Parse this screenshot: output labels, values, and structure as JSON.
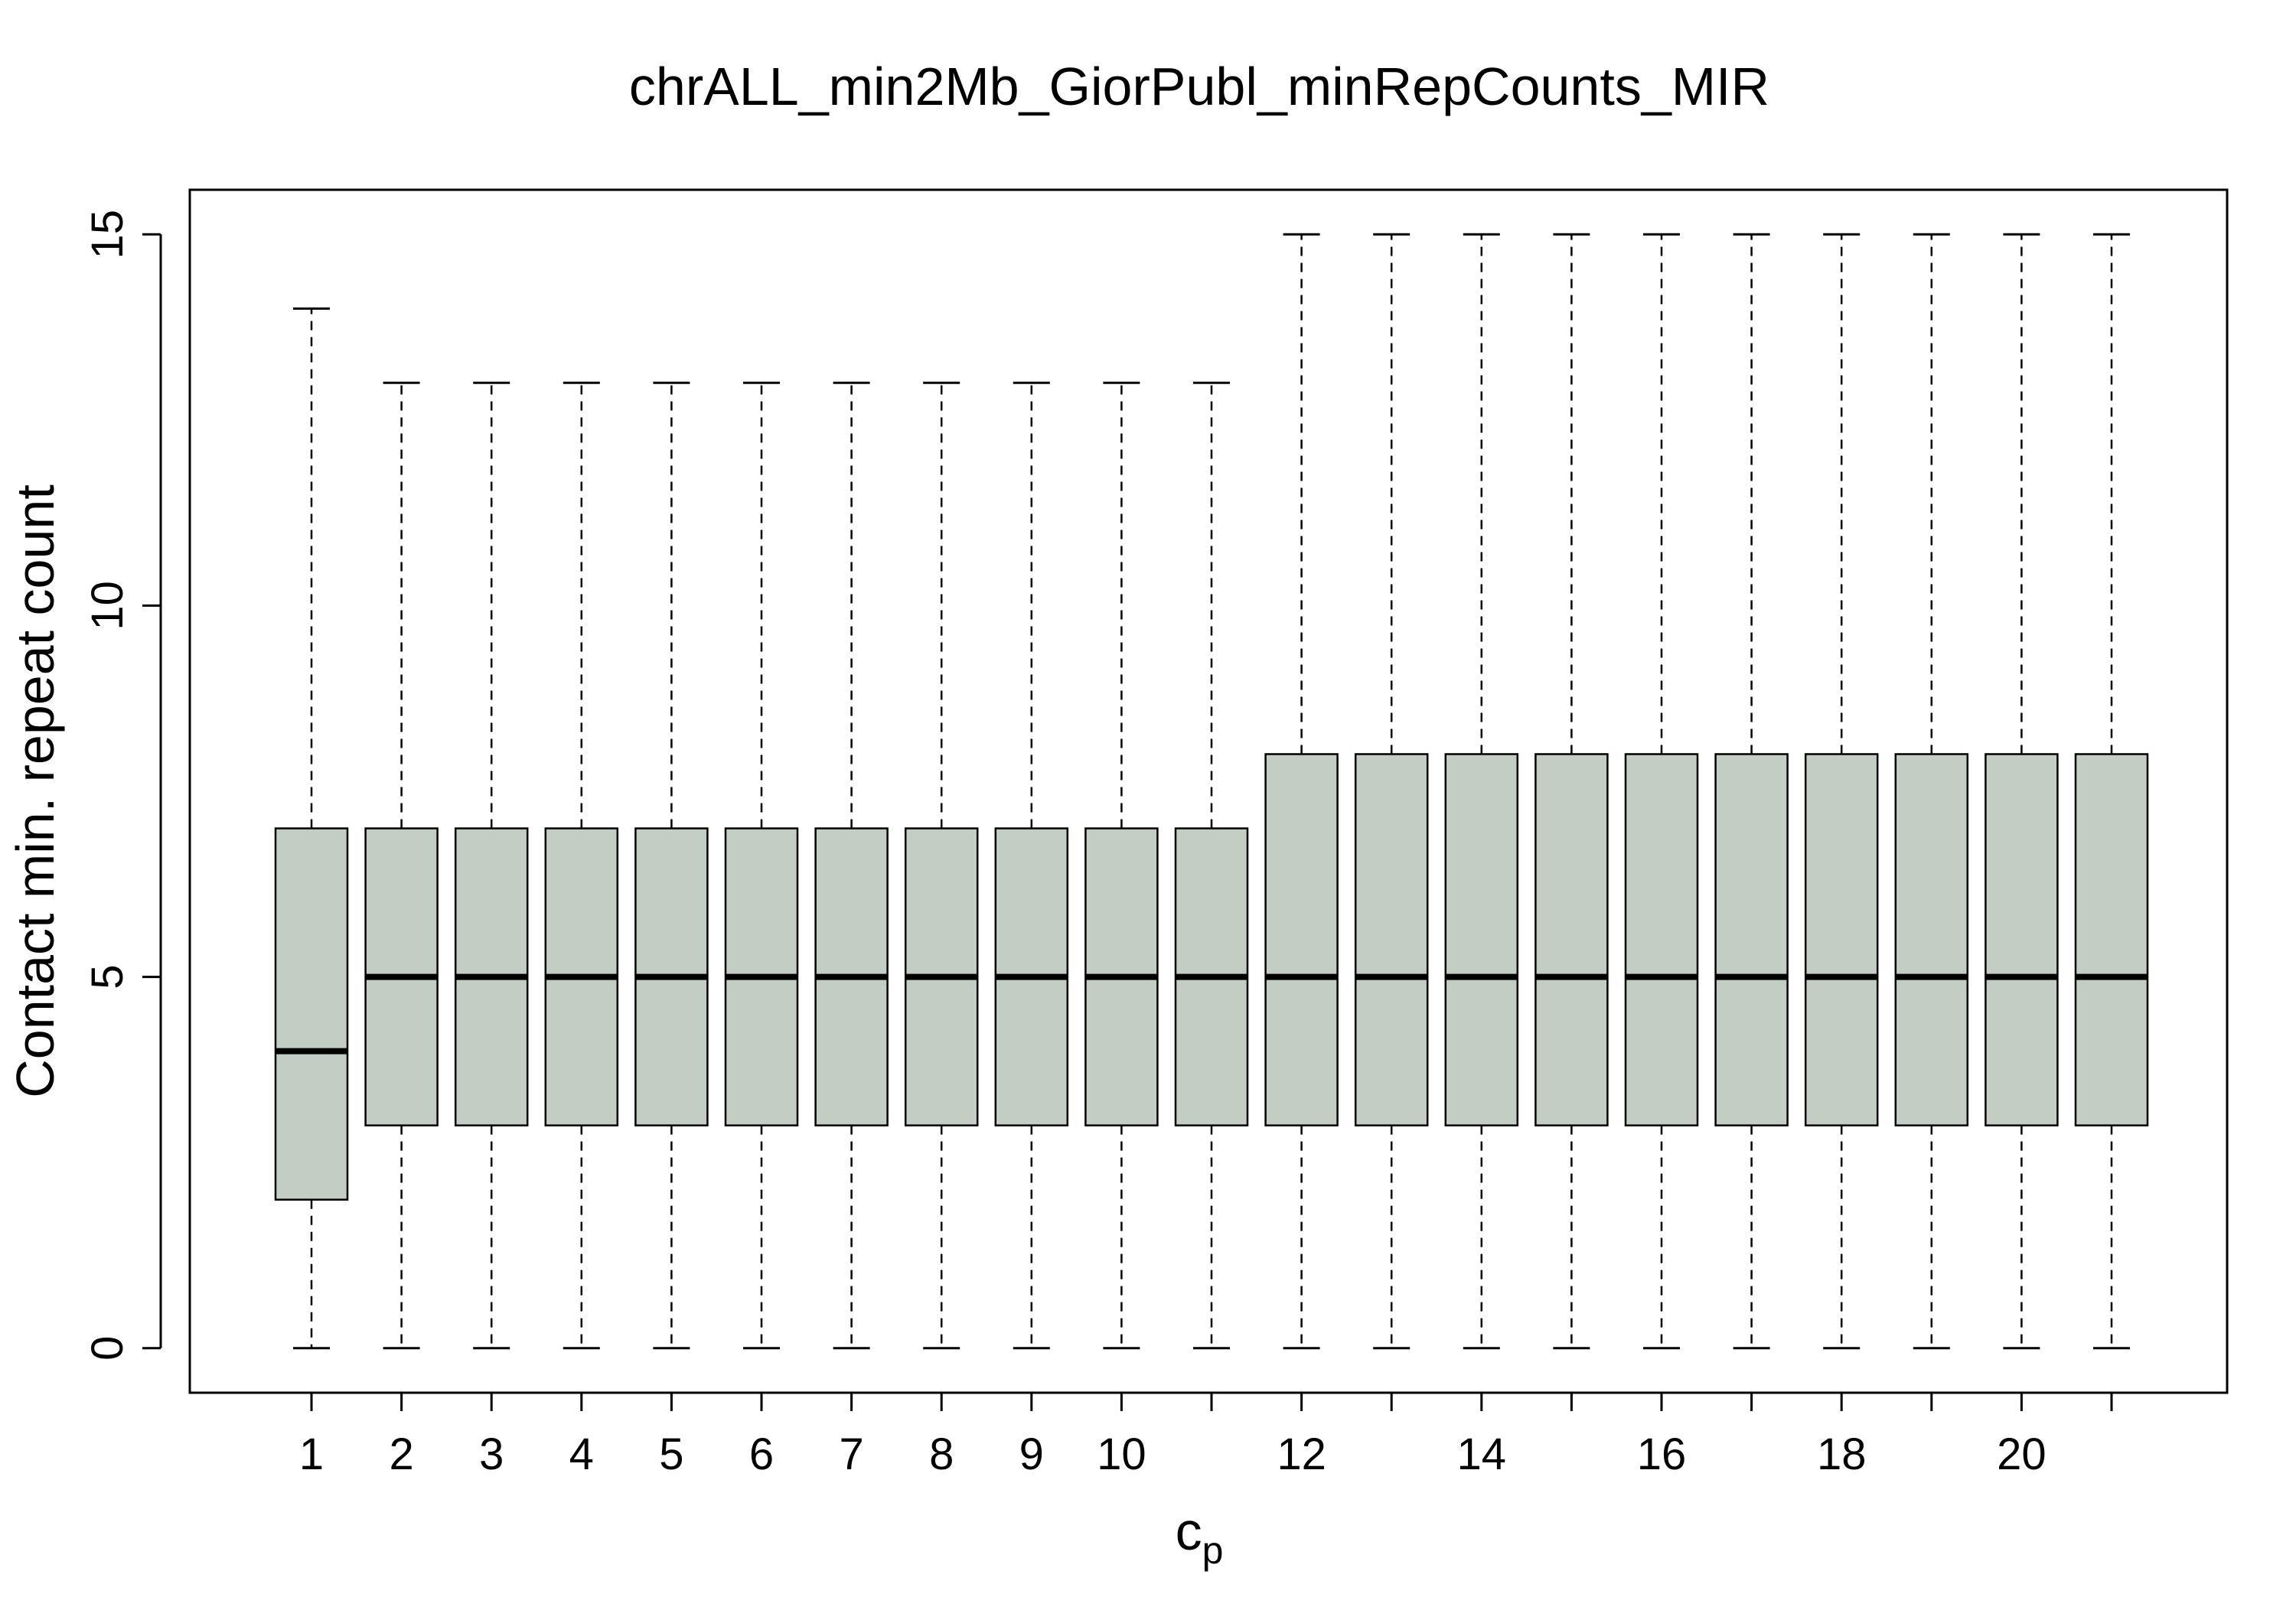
{
  "chart_data": {
    "type": "boxplot",
    "title": "chrALL_min2Mb_GiorPubl_minRepCounts_MIR",
    "xlabel": {
      "main": "c",
      "sub": "p"
    },
    "ylabel": "Contact min. repeat count",
    "ylim": [
      -0.6,
      15.6
    ],
    "y_ticks": [
      "0",
      "5",
      "10",
      "15"
    ],
    "x_tick_labels": [
      "1",
      "2",
      "3",
      "4",
      "5",
      "6",
      "7",
      "8",
      "9",
      "10",
      "",
      "12",
      "",
      "14",
      "",
      "16",
      "",
      "18",
      "",
      "20",
      ""
    ],
    "grid": false,
    "legend": "none",
    "box_fill": "#c4cdc3",
    "box_stroke": "#000000",
    "boxes": [
      {
        "category": "1",
        "min": 0,
        "q1": 2,
        "median": 4,
        "q3": 7,
        "max": 14
      },
      {
        "category": "2",
        "min": 0,
        "q1": 3,
        "median": 5,
        "q3": 7,
        "max": 13
      },
      {
        "category": "3",
        "min": 0,
        "q1": 3,
        "median": 5,
        "q3": 7,
        "max": 13
      },
      {
        "category": "4",
        "min": 0,
        "q1": 3,
        "median": 5,
        "q3": 7,
        "max": 13
      },
      {
        "category": "5",
        "min": 0,
        "q1": 3,
        "median": 5,
        "q3": 7,
        "max": 13
      },
      {
        "category": "6",
        "min": 0,
        "q1": 3,
        "median": 5,
        "q3": 7,
        "max": 13
      },
      {
        "category": "7",
        "min": 0,
        "q1": 3,
        "median": 5,
        "q3": 7,
        "max": 13
      },
      {
        "category": "8",
        "min": 0,
        "q1": 3,
        "median": 5,
        "q3": 7,
        "max": 13
      },
      {
        "category": "9",
        "min": 0,
        "q1": 3,
        "median": 5,
        "q3": 7,
        "max": 13
      },
      {
        "category": "10",
        "min": 0,
        "q1": 3,
        "median": 5,
        "q3": 7,
        "max": 13
      },
      {
        "category": "11",
        "min": 0,
        "q1": 3,
        "median": 5,
        "q3": 7,
        "max": 13
      },
      {
        "category": "12",
        "min": 0,
        "q1": 3,
        "median": 5,
        "q3": 8,
        "max": 15
      },
      {
        "category": "13",
        "min": 0,
        "q1": 3,
        "median": 5,
        "q3": 8,
        "max": 15
      },
      {
        "category": "14",
        "min": 0,
        "q1": 3,
        "median": 5,
        "q3": 8,
        "max": 15
      },
      {
        "category": "15",
        "min": 0,
        "q1": 3,
        "median": 5,
        "q3": 8,
        "max": 15
      },
      {
        "category": "16",
        "min": 0,
        "q1": 3,
        "median": 5,
        "q3": 8,
        "max": 15
      },
      {
        "category": "17",
        "min": 0,
        "q1": 3,
        "median": 5,
        "q3": 8,
        "max": 15
      },
      {
        "category": "18",
        "min": 0,
        "q1": 3,
        "median": 5,
        "q3": 8,
        "max": 15
      },
      {
        "category": "19",
        "min": 0,
        "q1": 3,
        "median": 5,
        "q3": 8,
        "max": 15
      },
      {
        "category": "20",
        "min": 0,
        "q1": 3,
        "median": 5,
        "q3": 8,
        "max": 15
      },
      {
        "category": "21",
        "min": 0,
        "q1": 3,
        "median": 5,
        "q3": 8,
        "max": 15
      }
    ]
  }
}
